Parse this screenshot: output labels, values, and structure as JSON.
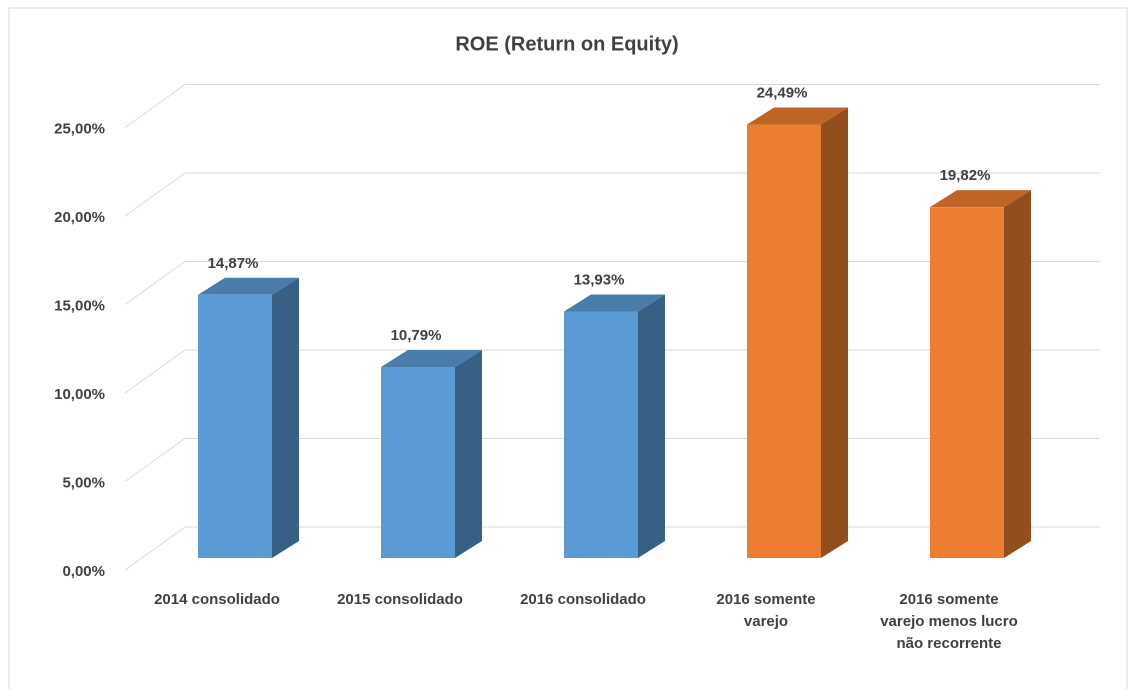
{
  "chart_data": {
    "type": "bar3d",
    "title": "ROE (Return on Equity)",
    "categories": [
      "2014 consolidado",
      "2015 consolidado",
      "2016 consolidado",
      "2016 somente varejo",
      "2016 somente varejo menos lucro não recorrente"
    ],
    "values": [
      14.87,
      10.79,
      13.93,
      24.49,
      19.82
    ],
    "value_labels": [
      "14,87%",
      "10,79%",
      "13,93%",
      "24,49%",
      "19,82%"
    ],
    "colors": [
      "#5b9bd5",
      "#5b9bd5",
      "#5b9bd5",
      "#ed7d31",
      "#ed7d31"
    ],
    "ylim": [
      0,
      27.5
    ],
    "yticks": [
      {
        "value": 0,
        "label": "0,00%"
      },
      {
        "value": 5,
        "label": "5,00%"
      },
      {
        "value": 10,
        "label": "10,00%"
      },
      {
        "value": 15,
        "label": "15,00%"
      },
      {
        "value": 20,
        "label": "20,00%"
      },
      {
        "value": 25,
        "label": "25,00%"
      }
    ],
    "grid": true
  }
}
